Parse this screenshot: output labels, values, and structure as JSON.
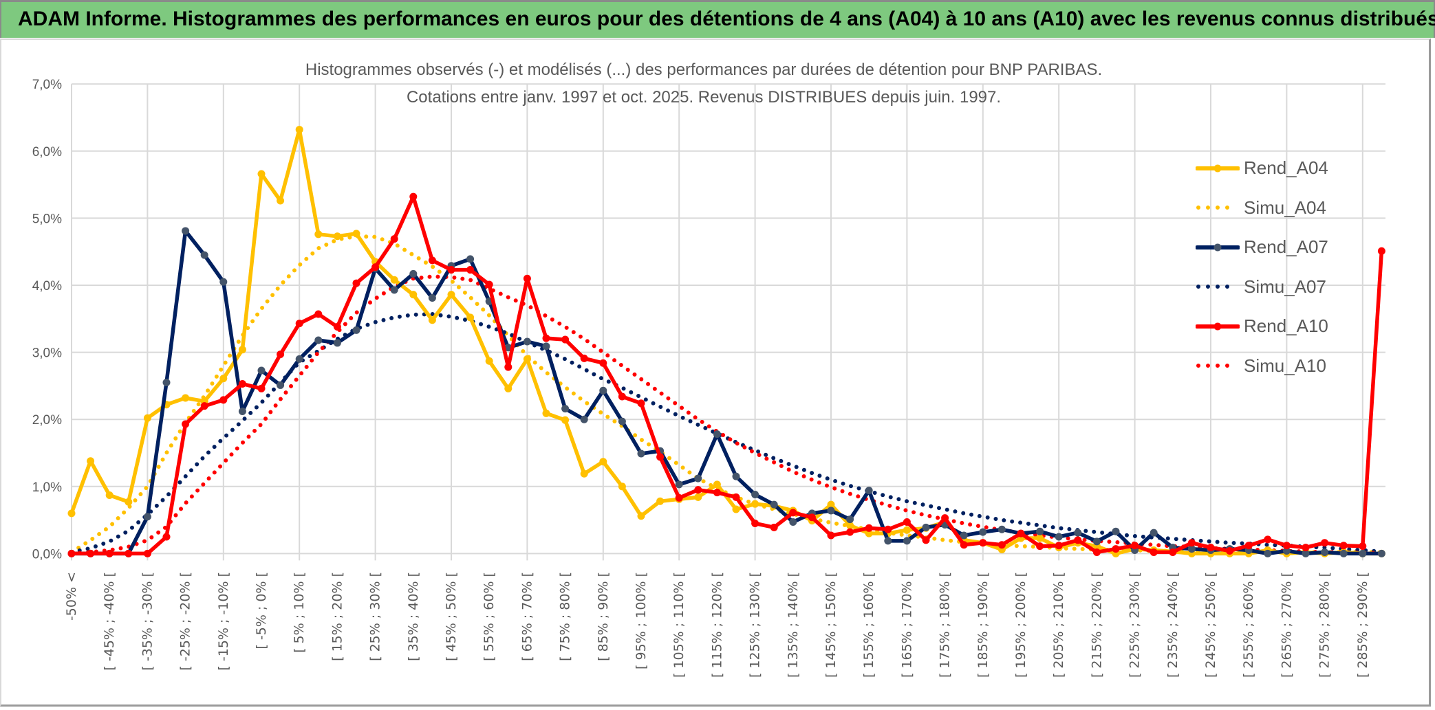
{
  "header": {
    "title": "ADAM Informe. Histogrammes des performances en euros pour des détentions de 4 ans (A04) à 10 ans (A10) avec les revenus connus distribués"
  },
  "colors": {
    "title_bar": "#7ec97f",
    "A04": "#ffc000",
    "A07": "#002060",
    "A07_marker": "#44546a",
    "A10": "#ff0000",
    "grid": "#d9d9d9",
    "text": "#595959"
  },
  "chart_data": {
    "type": "line",
    "title": "Histogrammes observés (-) et modélisés (...) des performances par durées de détention pour BNP PARIBAS.",
    "subtitle": "Cotations entre janv. 1997 et oct. 2025. Revenus DISTRIBUES depuis juin. 1997.",
    "xlabel": "",
    "ylabel": "",
    "ylim": [
      0,
      7
    ],
    "y_ticks": [
      "0,0%",
      "1,0%",
      "2,0%",
      "3,0%",
      "4,0%",
      "5,0%",
      "6,0%",
      "7,0%"
    ],
    "n_categories": 70,
    "x_label_every": 2,
    "x_labels": [
      "-50% <",
      "[ -45% ; -40% [",
      "[ -35% ; -30% [",
      "[ -25% ; -20% [",
      "[ -15% ; -10% [",
      "[ -5% ; 0% [",
      "[ 5% ; 10% [",
      "[ 15% ; 20% [",
      "[ 25% ; 30% [",
      "[ 35% ; 40% [",
      "[ 45% ; 50% [",
      "[ 55% ; 60% [",
      "[ 65% ; 70% [",
      "[ 75% ; 80% [",
      "[ 85% ; 90% [",
      "[ 95% ; 100% [",
      "[ 105% ; 110% [",
      "[ 115% ; 120% [",
      "[ 125% ; 130% [",
      "[ 135% ; 140% [",
      "[ 145% ; 150% [",
      "[ 155% ; 160% [",
      "[ 165% ; 170% [",
      "[ 175% ; 180% [",
      "[ 185% ; 190% [",
      "[ 195% ; 200% [",
      "[ 205% ; 210% [",
      "[ 215% ; 220% [",
      "[ 225% ; 230% [",
      "[ 235% ; 240% [",
      "[ 245% ; 250% [",
      "[ 255% ; 260% [",
      "[ 265% ; 270% [",
      "[ 275% ; 280% [",
      "[ 285% ; 290% ["
    ],
    "grid": true,
    "legend_position": "right",
    "series": [
      {
        "name": "Rend_A04",
        "style": "solid-markers",
        "color": "#ffc000",
        "values": [
          0.6,
          1.38,
          0.87,
          0.77,
          2.02,
          2.22,
          2.32,
          2.27,
          2.61,
          3.04,
          5.66,
          5.26,
          6.32,
          4.76,
          4.73,
          4.77,
          4.35,
          4.08,
          3.86,
          3.48,
          3.86,
          3.52,
          2.87,
          2.46,
          2.9,
          2.09,
          1.99,
          1.19,
          1.37,
          1.0,
          0.56,
          0.78,
          0.81,
          0.84,
          1.03,
          0.66,
          0.74,
          0.71,
          0.64,
          0.49,
          0.73,
          0.42,
          0.3,
          0.3,
          0.35,
          0.38,
          0.47,
          0.2,
          0.16,
          0.06,
          0.23,
          0.23,
          0.09,
          0.16,
          0.11,
          0.0,
          0.07,
          0.05,
          0.03,
          0.0,
          0.0,
          0.0,
          0.0,
          0.05,
          0.0,
          0.02,
          0.0,
          0.02,
          0.0,
          0.0
        ]
      },
      {
        "name": "Simu_A04",
        "style": "dotted",
        "color": "#ffc000",
        "values": [
          0.02,
          0.2,
          0.4,
          0.68,
          1.0,
          1.5,
          1.95,
          2.35,
          2.8,
          3.25,
          3.65,
          4.0,
          4.3,
          4.55,
          4.68,
          4.73,
          4.72,
          4.62,
          4.45,
          4.28,
          4.07,
          3.82,
          3.55,
          3.25,
          2.95,
          2.7,
          2.48,
          2.27,
          2.08,
          1.9,
          1.7,
          1.52,
          1.32,
          1.12,
          0.97,
          0.84,
          0.74,
          0.66,
          0.59,
          0.52,
          0.46,
          0.41,
          0.36,
          0.31,
          0.27,
          0.24,
          0.2,
          0.17,
          0.15,
          0.13,
          0.11,
          0.1,
          0.08,
          0.07,
          0.06,
          0.05,
          0.05,
          0.04,
          0.04,
          0.03,
          0.03,
          0.02,
          0.02,
          0.02,
          0.02,
          0.02,
          0.02,
          0.02,
          0.02,
          0.02
        ]
      },
      {
        "name": "Rend_A07",
        "style": "solid-markers",
        "color": "#002060",
        "values": [
          0,
          0,
          0,
          0,
          0.55,
          2.55,
          4.81,
          4.45,
          4.05,
          2.12,
          2.73,
          2.51,
          2.9,
          3.18,
          3.14,
          3.33,
          4.25,
          3.93,
          4.17,
          3.81,
          4.29,
          4.39,
          3.76,
          3.07,
          3.16,
          3.09,
          2.16,
          2.0,
          2.43,
          1.97,
          1.49,
          1.53,
          1.03,
          1.12,
          1.78,
          1.15,
          0.88,
          0.73,
          0.47,
          0.6,
          0.64,
          0.51,
          0.94,
          0.19,
          0.19,
          0.39,
          0.43,
          0.27,
          0.32,
          0.36,
          0.3,
          0.33,
          0.25,
          0.31,
          0.18,
          0.33,
          0.05,
          0.31,
          0.09,
          0.07,
          0.05,
          0.07,
          0.05,
          0.0,
          0.04,
          0.0,
          0.02,
          0.0,
          0.0,
          0.0
        ]
      },
      {
        "name": "Simu_A07",
        "style": "dotted",
        "color": "#002060",
        "values": [
          0.02,
          0.08,
          0.18,
          0.34,
          0.58,
          0.85,
          1.15,
          1.45,
          1.72,
          1.98,
          2.25,
          2.55,
          2.85,
          3.02,
          3.2,
          3.35,
          3.45,
          3.52,
          3.56,
          3.57,
          3.53,
          3.47,
          3.38,
          3.28,
          3.15,
          3.03,
          2.9,
          2.75,
          2.6,
          2.47,
          2.33,
          2.19,
          2.05,
          1.92,
          1.79,
          1.66,
          1.54,
          1.42,
          1.31,
          1.2,
          1.1,
          1.01,
          0.93,
          0.85,
          0.78,
          0.72,
          0.66,
          0.6,
          0.55,
          0.5,
          0.46,
          0.42,
          0.38,
          0.35,
          0.32,
          0.29,
          0.26,
          0.24,
          0.22,
          0.2,
          0.18,
          0.16,
          0.15,
          0.13,
          0.12,
          0.1,
          0.09,
          0.07,
          0.05,
          0.03
        ]
      },
      {
        "name": "Rend_A10",
        "style": "solid-markers",
        "color": "#ff0000",
        "values": [
          0,
          0,
          0,
          0,
          0,
          0.25,
          1.93,
          2.2,
          2.29,
          2.53,
          2.46,
          2.97,
          3.43,
          3.57,
          3.38,
          4.03,
          4.27,
          4.69,
          5.32,
          4.37,
          4.23,
          4.23,
          4.01,
          2.78,
          4.1,
          3.21,
          3.19,
          2.91,
          2.84,
          2.34,
          2.24,
          1.44,
          0.83,
          0.95,
          0.91,
          0.84,
          0.45,
          0.39,
          0.61,
          0.54,
          0.27,
          0.32,
          0.38,
          0.36,
          0.47,
          0.2,
          0.53,
          0.13,
          0.16,
          0.13,
          0.3,
          0.11,
          0.12,
          0.2,
          0.02,
          0.07,
          0.12,
          0.02,
          0.02,
          0.16,
          0.09,
          0.04,
          0.12,
          0.21,
          0.12,
          0.09,
          0.16,
          0.12,
          0.11,
          4.51
        ]
      },
      {
        "name": "Simu_A10",
        "style": "dotted",
        "color": "#ff0000",
        "values": [
          0.0,
          0.02,
          0.05,
          0.1,
          0.2,
          0.4,
          0.75,
          1.05,
          1.35,
          1.65,
          1.93,
          2.3,
          2.65,
          3.0,
          3.3,
          3.59,
          3.8,
          3.98,
          4.1,
          4.13,
          4.12,
          4.08,
          3.95,
          3.82,
          3.7,
          3.54,
          3.38,
          3.2,
          3.0,
          2.8,
          2.6,
          2.4,
          2.2,
          2.0,
          1.82,
          1.65,
          1.5,
          1.36,
          1.22,
          1.1,
          0.99,
          0.89,
          0.8,
          0.72,
          0.64,
          0.57,
          0.51,
          0.45,
          0.4,
          0.35,
          0.31,
          0.27,
          0.24,
          0.21,
          0.19,
          0.17,
          0.15,
          0.13,
          0.11,
          0.1,
          0.08,
          0.07,
          0.06,
          0.05,
          0.04,
          0.03,
          0.02,
          0.02,
          0.01,
          0.01
        ]
      }
    ]
  }
}
